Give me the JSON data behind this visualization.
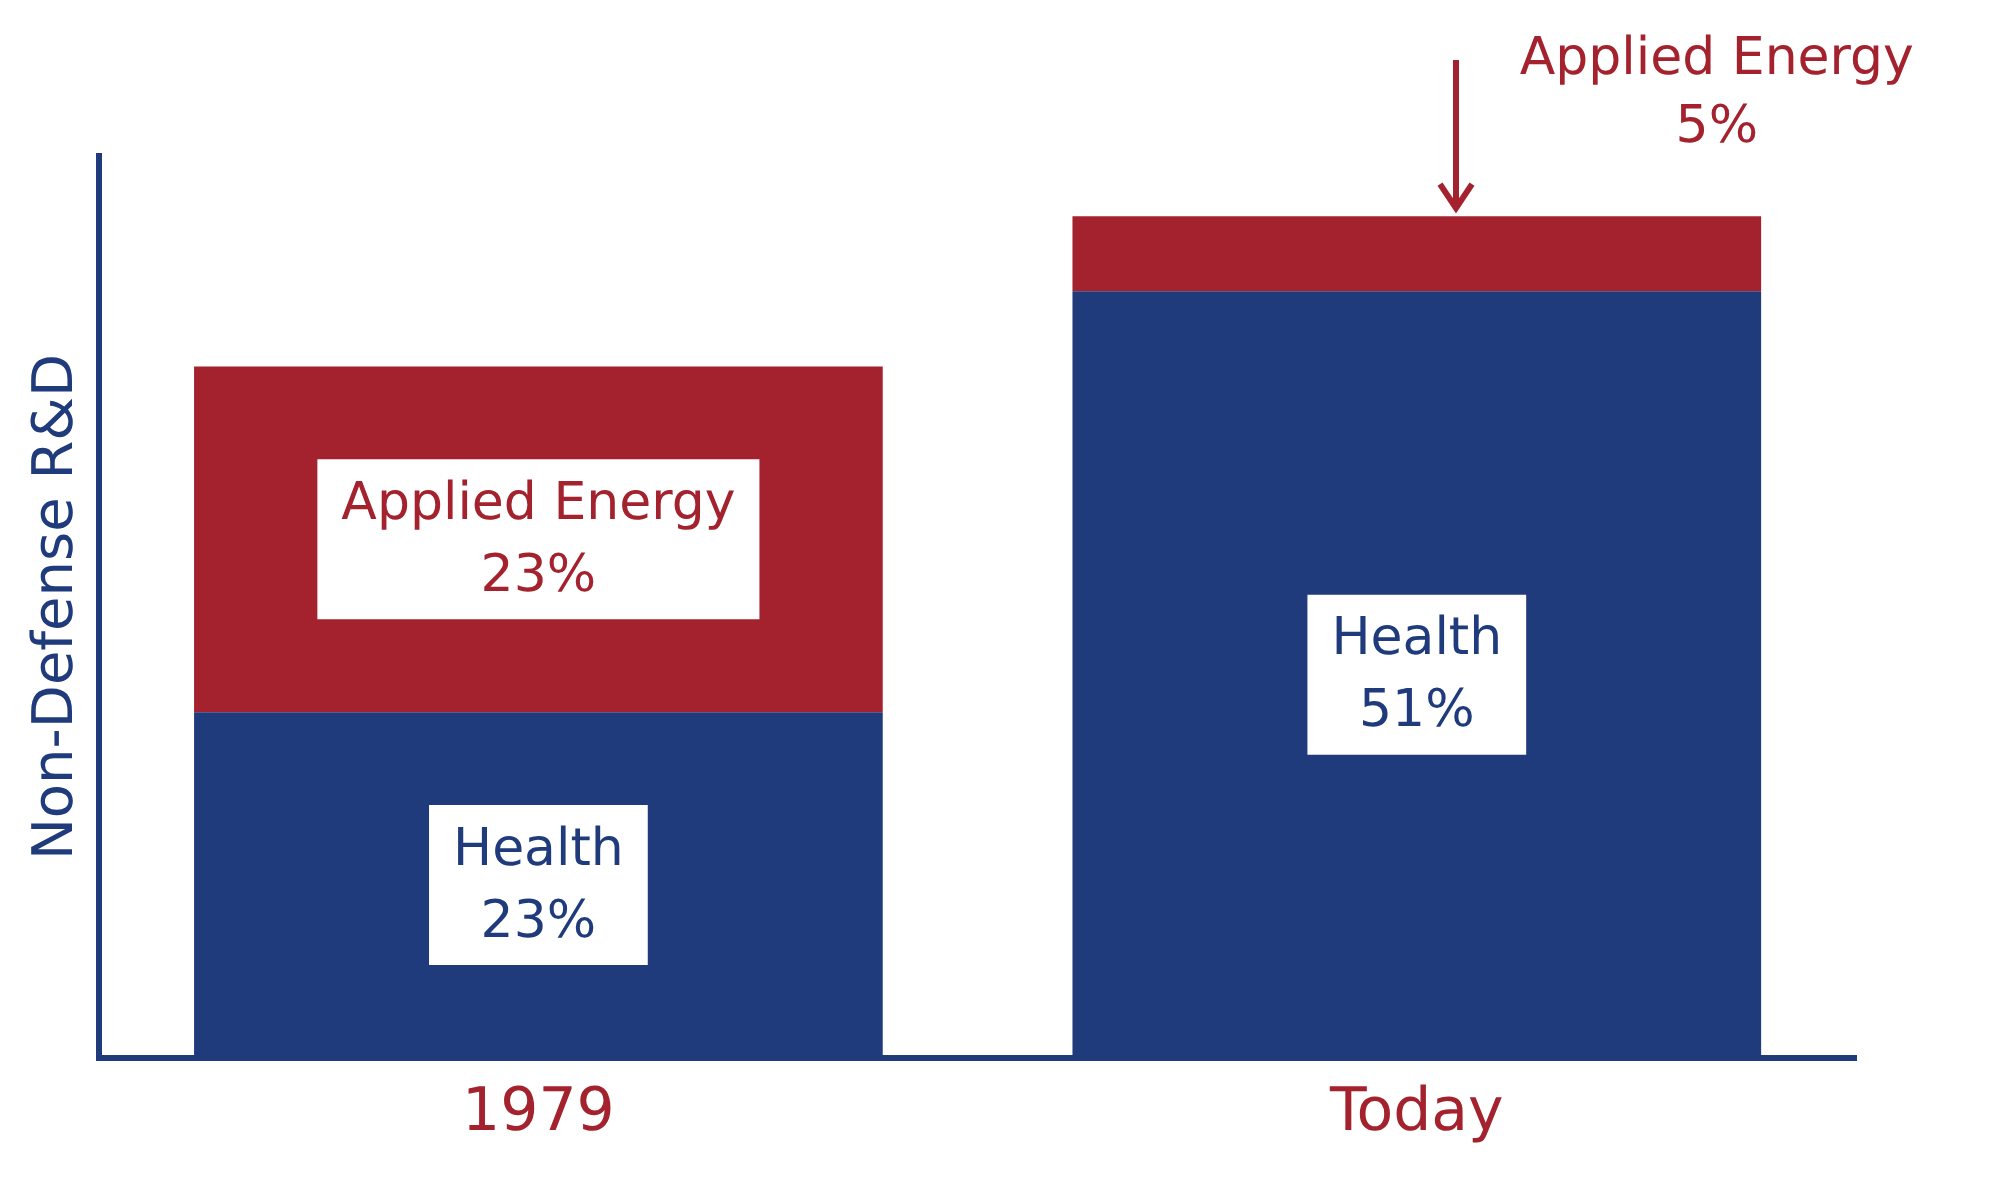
{
  "chart_data": {
    "type": "bar",
    "stacked": true,
    "ylabel": "Non-Defense R&D",
    "categories": [
      "1979",
      "Today"
    ],
    "series": [
      {
        "name": "Health",
        "color": "#1f3b7c",
        "values": [
          23,
          51
        ],
        "value_labels": [
          "23%",
          "51%"
        ]
      },
      {
        "name": "Applied Energy",
        "color": "#a3222d",
        "values": [
          23,
          5
        ],
        "value_labels": [
          "23%",
          "5%"
        ]
      }
    ],
    "tick_labels": "x",
    "grid": false,
    "legend": false
  }
}
